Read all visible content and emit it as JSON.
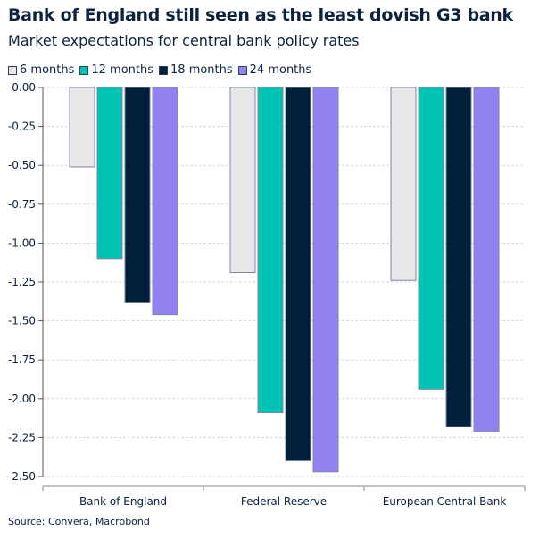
{
  "title": "Bank of England still seen as the least dovish G3 bank",
  "subtitle": "Market expectations for central bank policy rates",
  "source": "Source: Convera, Macrobond",
  "chart_data": {
    "type": "bar",
    "categories": [
      "Bank of England",
      "Federal Reserve",
      "European Central Bank"
    ],
    "series": [
      {
        "name": "6 months",
        "color": "#e8e8e8",
        "values": [
          -0.51,
          -1.19,
          -1.24
        ]
      },
      {
        "name": "12 months",
        "color": "#00c4b3",
        "values": [
          -1.1,
          -2.09,
          -1.94
        ]
      },
      {
        "name": "18 months",
        "color": "#001f3a",
        "values": [
          -1.38,
          -2.4,
          -2.18
        ]
      },
      {
        "name": "24 months",
        "color": "#9282f0",
        "values": [
          -1.46,
          -2.47,
          -2.21
        ]
      }
    ],
    "ylim": [
      -2.5,
      0
    ],
    "yticks": [
      "0.00",
      "-0.25",
      "-0.50",
      "-0.75",
      "-1.00",
      "-1.25",
      "-1.50",
      "-1.75",
      "-2.00",
      "-2.25",
      "-2.50"
    ],
    "grid": true,
    "legend": "top-left"
  }
}
